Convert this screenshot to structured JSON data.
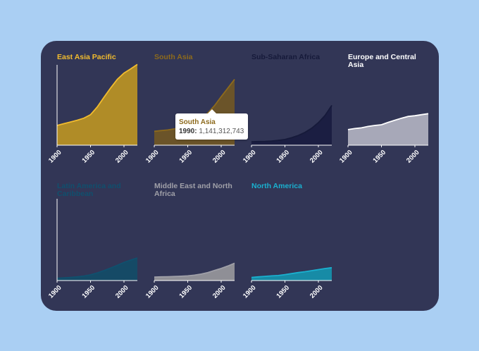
{
  "chart_data": {
    "type": "area",
    "layout": "small multiples",
    "x_axis": {
      "range": [
        1900,
        2020
      ],
      "ticks": [
        "1900",
        "1950",
        "2000"
      ]
    },
    "y_axis": {
      "shared": true,
      "unit": "population",
      "ylim": [
        0,
        2400000000
      ]
    },
    "panels": [
      {
        "name": "East Asia Pacific",
        "color": "#f2bc2e",
        "fill": "#b08c27",
        "x": [
          1900,
          1910,
          1920,
          1930,
          1940,
          1950,
          1960,
          1970,
          1980,
          1990,
          2000,
          2010,
          2020
        ],
        "values": [
          570000000,
          620000000,
          670000000,
          720000000,
          780000000,
          880000000,
          1100000000,
          1380000000,
          1650000000,
          1900000000,
          2080000000,
          2200000000,
          2330000000
        ]
      },
      {
        "name": "South Asia",
        "color": "#8d6a1c",
        "fill": "#6b5429",
        "x": [
          1900,
          1910,
          1920,
          1930,
          1940,
          1950,
          1960,
          1970,
          1980,
          1990,
          2000,
          2010,
          2020
        ],
        "values": [
          400000000,
          420000000,
          440000000,
          470000000,
          510000000,
          560000000,
          640000000,
          760000000,
          930000000,
          1141312743,
          1400000000,
          1650000000,
          1900000000
        ]
      },
      {
        "name": "Sub-Saharan Africa",
        "color": "#161a3a",
        "fill": "#1b1e42",
        "x": [
          1900,
          1910,
          1920,
          1930,
          1940,
          1950,
          1960,
          1970,
          1980,
          1990,
          2000,
          2010,
          2020
        ],
        "values": [
          100000000,
          105000000,
          110000000,
          120000000,
          140000000,
          165000000,
          215000000,
          280000000,
          370000000,
          490000000,
          650000000,
          860000000,
          1150000000
        ]
      },
      {
        "name": "Europe and Central Asia",
        "color": "#ffffff",
        "fill": "#a7a8b8",
        "x": [
          1900,
          1910,
          1920,
          1930,
          1940,
          1950,
          1960,
          1970,
          1980,
          1990,
          2000,
          2010,
          2020
        ],
        "values": [
          450000000,
          480000000,
          500000000,
          540000000,
          570000000,
          590000000,
          660000000,
          720000000,
          780000000,
          830000000,
          850000000,
          880000000,
          910000000
        ]
      },
      {
        "name": "Latin America and Caribbean",
        "color": "#10506e",
        "fill": "#154a66",
        "x": [
          1900,
          1910,
          1920,
          1930,
          1940,
          1950,
          1960,
          1970,
          1980,
          1990,
          2000,
          2010,
          2020
        ],
        "values": [
          65000000,
          75000000,
          90000000,
          105000000,
          130000000,
          165000000,
          220000000,
          285000000,
          360000000,
          440000000,
          520000000,
          590000000,
          650000000
        ]
      },
      {
        "name": "Middle East and North Africa",
        "color": "#a0a0a8",
        "fill": "#8f8f96",
        "x": [
          1900,
          1910,
          1920,
          1930,
          1940,
          1950,
          1960,
          1970,
          1980,
          1990,
          2000,
          2010,
          2020
        ],
        "values": [
          100000000,
          105000000,
          110000000,
          115000000,
          125000000,
          135000000,
          155000000,
          185000000,
          230000000,
          290000000,
          350000000,
          420000000,
          500000000
        ]
      },
      {
        "name": "North America",
        "color": "#1ab0cf",
        "fill": "#178ba6",
        "x": [
          1900,
          1910,
          1920,
          1930,
          1940,
          1950,
          1960,
          1970,
          1980,
          1990,
          2000,
          2010,
          2020
        ],
        "values": [
          90000000,
          105000000,
          120000000,
          135000000,
          145000000,
          170000000,
          200000000,
          230000000,
          255000000,
          285000000,
          315000000,
          345000000,
          370000000
        ]
      }
    ],
    "tooltip": {
      "region": "South Asia",
      "year": "1990",
      "year_label": "1990:",
      "value": "1,141,312,743"
    }
  }
}
